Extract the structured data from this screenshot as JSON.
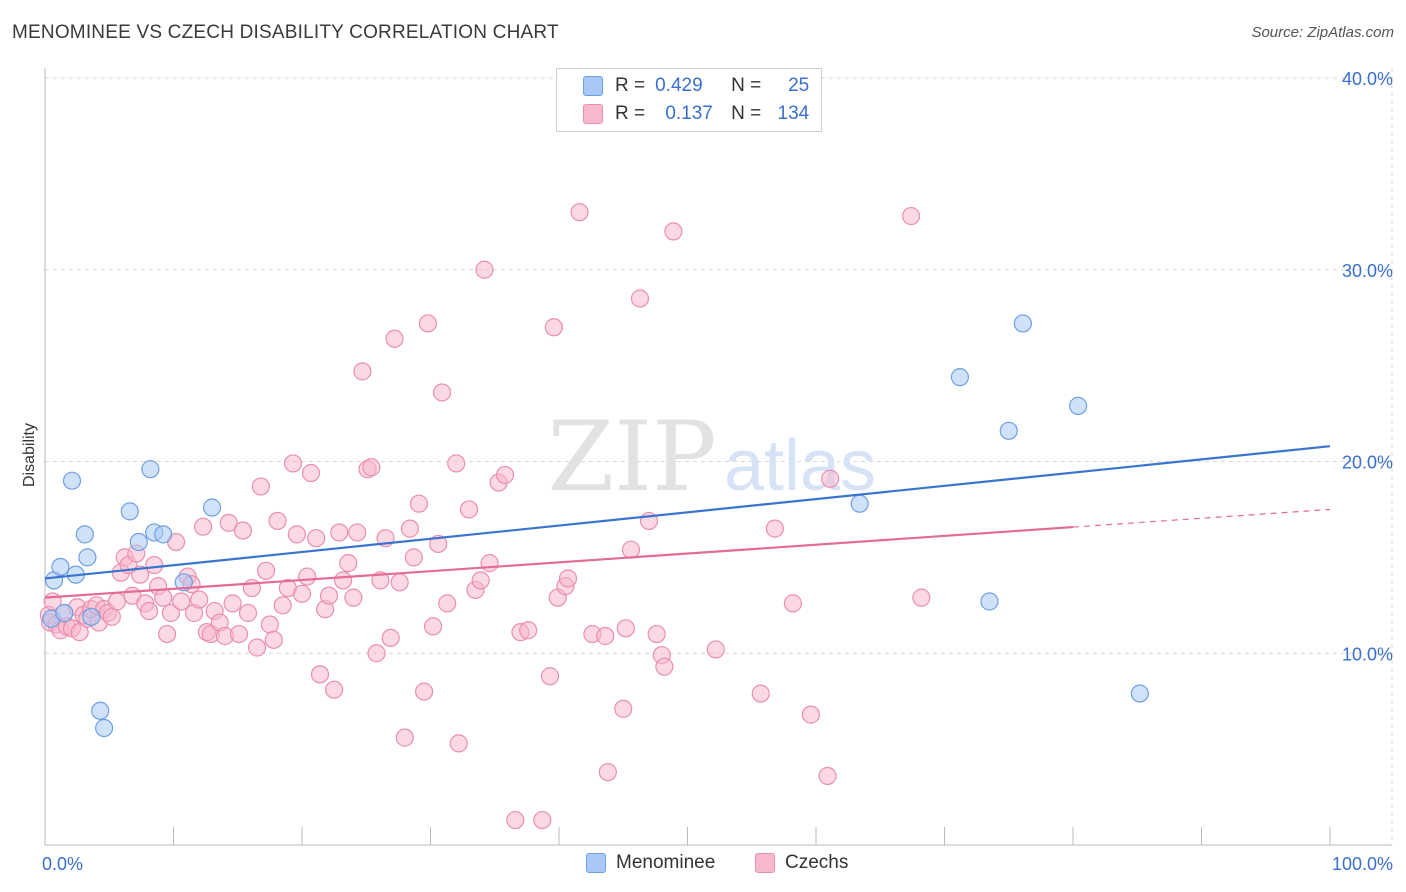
{
  "title": "MENOMINEE VS CZECH DISABILITY CORRELATION CHART",
  "source": "Source: ZipAtlas.com",
  "watermark": {
    "zip": "ZIP",
    "atlas": "atlas"
  },
  "legend": {
    "rows": [
      {
        "r_label": "R =",
        "r_value": "0.429",
        "n_label": "N =",
        "n_value": "25"
      },
      {
        "r_label": "R =",
        "r_value": "0.137",
        "n_label": "N =",
        "n_value": "134"
      }
    ]
  },
  "bottom_legend": [
    "Menominee",
    "Czechs"
  ],
  "colors": {
    "menominee_fill": "#a9c8f5",
    "menominee_stroke": "#6f9fe3",
    "menominee_line": "#3a74d1",
    "czech_fill": "#f7b8cc",
    "czech_stroke": "#ea8fae",
    "czech_line": "#e36b96",
    "grid": "#d8d8d8",
    "axis_label": "#3a6fd0"
  },
  "chart_data": {
    "type": "scatter",
    "title": "MENOMINEE VS CZECH DISABILITY CORRELATION CHART",
    "xlabel": "",
    "ylabel": "Disability",
    "xlim": [
      0,
      100
    ],
    "ylim": [
      0,
      40
    ],
    "x_tick_labels": [
      "0.0%",
      "100.0%"
    ],
    "y_ticks": [
      10,
      20,
      30,
      40
    ],
    "y_tick_labels": [
      "10.0%",
      "20.0%",
      "30.0%",
      "40.0%"
    ],
    "grid": true,
    "legend_position": "top-center",
    "series": [
      {
        "name": "Menominee",
        "r": 0.429,
        "n": 25,
        "trend": {
          "x": [
            0,
            100
          ],
          "y": [
            13.9,
            20.8
          ],
          "dashed_after": null
        },
        "points": [
          [
            0.5,
            11.8
          ],
          [
            0.7,
            13.8
          ],
          [
            1.2,
            14.5
          ],
          [
            1.5,
            12.1
          ],
          [
            2.1,
            19.0
          ],
          [
            2.4,
            14.1
          ],
          [
            3.1,
            16.2
          ],
          [
            3.3,
            15.0
          ],
          [
            3.6,
            11.9
          ],
          [
            4.3,
            7.0
          ],
          [
            4.6,
            6.1
          ],
          [
            6.6,
            17.4
          ],
          [
            7.3,
            15.8
          ],
          [
            8.2,
            19.6
          ],
          [
            8.5,
            16.3
          ],
          [
            9.2,
            16.2
          ],
          [
            10.8,
            13.7
          ],
          [
            13.0,
            17.6
          ],
          [
            63.4,
            17.8
          ],
          [
            71.2,
            24.4
          ],
          [
            73.5,
            12.7
          ],
          [
            75.0,
            21.6
          ],
          [
            76.1,
            27.2
          ],
          [
            80.4,
            22.9
          ],
          [
            85.2,
            7.9
          ]
        ]
      },
      {
        "name": "Czechs",
        "r": 0.137,
        "n": 134,
        "trend": {
          "x": [
            0,
            100
          ],
          "y": [
            12.9,
            17.5
          ],
          "dashed_after": 80
        },
        "points": [
          [
            0.3,
            12.0
          ],
          [
            0.4,
            11.6
          ],
          [
            0.6,
            12.7
          ],
          [
            0.9,
            11.5
          ],
          [
            1.2,
            11.2
          ],
          [
            1.5,
            12.1
          ],
          [
            1.7,
            11.4
          ],
          [
            2.1,
            11.3
          ],
          [
            2.5,
            12.4
          ],
          [
            2.7,
            11.1
          ],
          [
            3.0,
            12.0
          ],
          [
            3.3,
            11.8
          ],
          [
            3.6,
            12.3
          ],
          [
            4.0,
            12.5
          ],
          [
            4.2,
            11.6
          ],
          [
            4.6,
            12.3
          ],
          [
            4.9,
            12.1
          ],
          [
            5.2,
            11.9
          ],
          [
            5.6,
            12.7
          ],
          [
            5.9,
            14.2
          ],
          [
            6.2,
            15.0
          ],
          [
            6.5,
            14.6
          ],
          [
            6.8,
            13.0
          ],
          [
            7.1,
            15.2
          ],
          [
            7.4,
            14.1
          ],
          [
            7.8,
            12.6
          ],
          [
            8.1,
            12.2
          ],
          [
            8.5,
            14.6
          ],
          [
            8.8,
            13.5
          ],
          [
            9.2,
            12.9
          ],
          [
            9.5,
            11.0
          ],
          [
            9.8,
            12.1
          ],
          [
            10.2,
            15.8
          ],
          [
            10.6,
            12.7
          ],
          [
            11.1,
            14.0
          ],
          [
            11.4,
            13.6
          ],
          [
            11.6,
            12.1
          ],
          [
            12.0,
            12.8
          ],
          [
            12.3,
            16.6
          ],
          [
            12.6,
            11.1
          ],
          [
            12.9,
            11.0
          ],
          [
            13.2,
            12.2
          ],
          [
            13.6,
            11.6
          ],
          [
            14.0,
            10.9
          ],
          [
            14.3,
            16.8
          ],
          [
            14.6,
            12.6
          ],
          [
            15.1,
            11.0
          ],
          [
            15.4,
            16.4
          ],
          [
            15.8,
            12.1
          ],
          [
            16.1,
            13.4
          ],
          [
            16.5,
            10.3
          ],
          [
            16.8,
            18.7
          ],
          [
            17.2,
            14.3
          ],
          [
            17.5,
            11.5
          ],
          [
            17.8,
            10.7
          ],
          [
            18.1,
            16.9
          ],
          [
            18.5,
            12.5
          ],
          [
            18.9,
            13.4
          ],
          [
            19.3,
            19.9
          ],
          [
            19.6,
            16.2
          ],
          [
            20.0,
            13.1
          ],
          [
            20.4,
            14.0
          ],
          [
            20.7,
            19.4
          ],
          [
            21.1,
            16.0
          ],
          [
            21.4,
            8.9
          ],
          [
            21.8,
            12.3
          ],
          [
            22.1,
            13.0
          ],
          [
            22.5,
            8.1
          ],
          [
            22.9,
            16.3
          ],
          [
            23.2,
            13.8
          ],
          [
            23.6,
            14.7
          ],
          [
            24.0,
            12.9
          ],
          [
            24.3,
            16.3
          ],
          [
            24.7,
            24.7
          ],
          [
            25.1,
            19.6
          ],
          [
            25.4,
            19.7
          ],
          [
            25.8,
            10.0
          ],
          [
            26.1,
            13.8
          ],
          [
            26.5,
            16.0
          ],
          [
            26.9,
            10.8
          ],
          [
            27.2,
            26.4
          ],
          [
            27.6,
            13.7
          ],
          [
            28.0,
            5.6
          ],
          [
            28.4,
            16.5
          ],
          [
            28.7,
            15.0
          ],
          [
            29.1,
            17.8
          ],
          [
            29.5,
            8.0
          ],
          [
            29.8,
            27.2
          ],
          [
            30.2,
            11.4
          ],
          [
            30.6,
            15.7
          ],
          [
            30.9,
            23.6
          ],
          [
            31.3,
            12.6
          ],
          [
            32.0,
            19.9
          ],
          [
            32.2,
            5.3
          ],
          [
            33.0,
            17.5
          ],
          [
            33.5,
            13.3
          ],
          [
            33.9,
            13.8
          ],
          [
            34.2,
            30.0
          ],
          [
            34.6,
            14.7
          ],
          [
            35.3,
            18.9
          ],
          [
            35.8,
            19.3
          ],
          [
            36.6,
            1.3
          ],
          [
            37.0,
            11.1
          ],
          [
            37.6,
            11.2
          ],
          [
            38.7,
            1.3
          ],
          [
            39.3,
            8.8
          ],
          [
            39.6,
            27.0
          ],
          [
            39.9,
            12.9
          ],
          [
            40.5,
            13.5
          ],
          [
            40.7,
            13.9
          ],
          [
            41.6,
            33.0
          ],
          [
            42.6,
            11.0
          ],
          [
            43.6,
            10.9
          ],
          [
            43.8,
            3.8
          ],
          [
            45.0,
            7.1
          ],
          [
            45.2,
            11.3
          ],
          [
            45.6,
            15.4
          ],
          [
            46.3,
            28.5
          ],
          [
            47.0,
            16.9
          ],
          [
            47.6,
            11.0
          ],
          [
            48.0,
            9.9
          ],
          [
            48.2,
            9.3
          ],
          [
            48.9,
            32.0
          ],
          [
            52.2,
            10.2
          ],
          [
            55.7,
            7.9
          ],
          [
            56.8,
            16.5
          ],
          [
            58.2,
            12.6
          ],
          [
            59.6,
            6.8
          ],
          [
            60.9,
            3.6
          ],
          [
            61.1,
            19.1
          ],
          [
            67.4,
            32.8
          ],
          [
            68.2,
            12.9
          ]
        ]
      }
    ]
  }
}
